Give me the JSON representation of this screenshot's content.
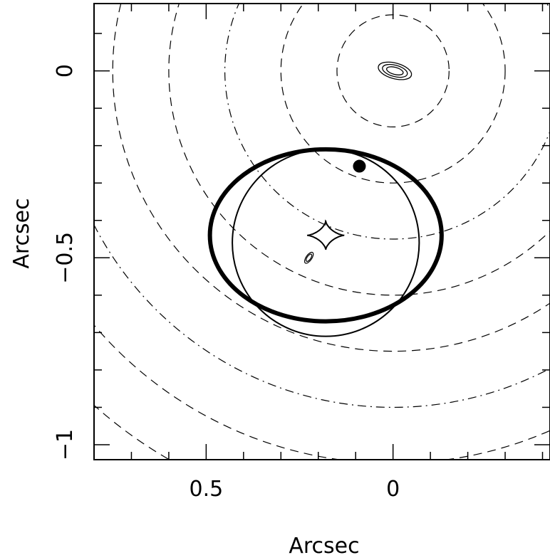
{
  "chart_data": {
    "type": "contour",
    "title": "",
    "xlabel": "Arcsec",
    "ylabel": "Arcsec",
    "x_axis": {
      "direction": "reversed",
      "xlim": [
        0.8,
        -0.42
      ],
      "ticks": [
        {
          "value": 0.5,
          "label": "0.5"
        },
        {
          "value": 0,
          "label": "0"
        }
      ]
    },
    "y_axis": {
      "ylim": [
        -1.04,
        0.18
      ],
      "ticks": [
        {
          "value": 0,
          "label": "0"
        },
        {
          "value": -0.5,
          "label": "−0.5"
        },
        {
          "value": -1,
          "label": "−1"
        }
      ]
    },
    "lens_center": {
      "x": 0.0,
      "y": 0.0
    },
    "potential_contour_radii": [
      0.15,
      0.3,
      0.45,
      0.6,
      0.75,
      0.9,
      1.05,
      1.2
    ],
    "critical_curve_circle": {
      "x": 0.18,
      "y": -0.46,
      "r": 0.25
    },
    "critical_curve_ellipse": {
      "x": 0.18,
      "y": -0.44,
      "rx": 0.31,
      "ry": 0.23
    },
    "caustic_center": {
      "x": 0.18,
      "y": -0.44
    },
    "source_marker": {
      "x": 0.09,
      "y": -0.255
    },
    "image_contours": [
      {
        "x": -0.005,
        "y": 0.0
      },
      {
        "x": 0.225,
        "y": -0.5
      }
    ]
  }
}
